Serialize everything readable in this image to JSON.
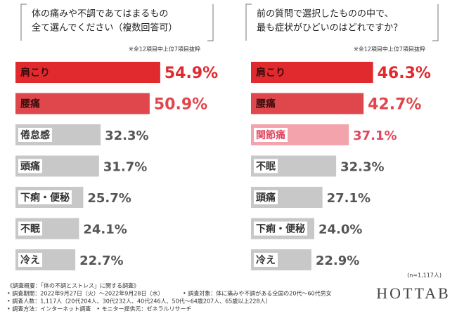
{
  "chart_data": [
    {
      "type": "bar",
      "orientation": "horizontal",
      "title": [
        "体の痛みや不調であてはまるもの",
        "全て選んでください（複数回答可）"
      ],
      "note": "※全12項目中上位7項目抜粋",
      "categories": [
        "肩こり",
        "腰痛",
        "倦怠感",
        "頭痛",
        "下痢・便秘",
        "不眠",
        "冷え"
      ],
      "values": [
        54.9,
        50.9,
        32.3,
        31.7,
        25.7,
        24.1,
        22.7
      ],
      "value_labels": [
        "54.9%",
        "50.9%",
        "32.3%",
        "31.7%",
        "25.7%",
        "24.1%",
        "22.7%"
      ],
      "colors": [
        "#e02a2e",
        "#e0474d",
        "#c8c8c8",
        "#c8c8c8",
        "#c8c8c8",
        "#c8c8c8",
        "#c8c8c8"
      ],
      "label_colors": [
        "#e02a2e",
        "#e0474d",
        "#555555",
        "#555555",
        "#555555",
        "#555555",
        "#555555"
      ],
      "xlim": [
        0,
        60
      ]
    },
    {
      "type": "bar",
      "orientation": "horizontal",
      "title": [
        "前の質問で選択したものの中で、",
        "最も症状がひどいのはどれですか？"
      ],
      "note": "※全12項目中上位7項目抜粋",
      "categories": [
        "肩こり",
        "腰痛",
        "関節痛",
        "不眠",
        "頭痛",
        "下痢・便秘",
        "冷え"
      ],
      "values": [
        46.3,
        42.7,
        37.1,
        32.3,
        27.1,
        24.0,
        22.9
      ],
      "value_labels": [
        "46.3%",
        "42.7%",
        "37.1%",
        "32.3%",
        "27.1%",
        "24.0%",
        "22.9%"
      ],
      "colors": [
        "#e02a2e",
        "#e0474d",
        "#f2a3ab",
        "#c8c8c8",
        "#c8c8c8",
        "#c8c8c8",
        "#c8c8c8"
      ],
      "label_colors": [
        "#e02a2e",
        "#e0474d",
        "#e0475f",
        "#555555",
        "#555555",
        "#555555",
        "#555555"
      ],
      "xlim": [
        0,
        60
      ]
    }
  ],
  "sample_note": "(n=1,117人)",
  "footer": {
    "heading": "《調査概要：「体の不調とストレス」に関する調査》",
    "period": "• 調査期間：2022年9月27日（火）〜2022年9月28日（水）",
    "target": "• 調査対象：体に痛みや不調がある全国の20代〜60代男女",
    "count": "• 調査人数：1,117人（20代204人、30代232人、40代246人、50代〜64歳207人、65歳以上228人）",
    "method": "• 調査方法：インターネット調査　• モニター提供元：ゼネラルリサーチ"
  },
  "logo": "HOTTAB"
}
